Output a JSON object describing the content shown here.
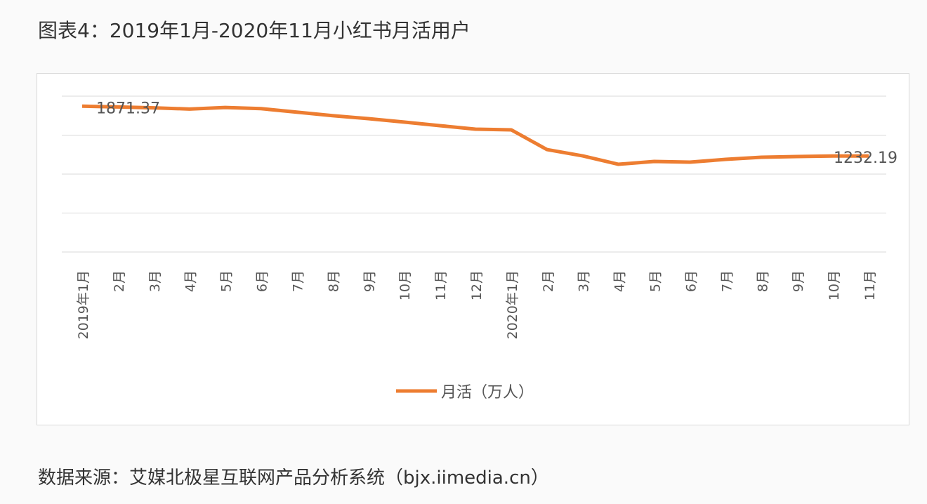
{
  "title": "图表4：2019年1月-2020年11月小红书月活用户",
  "source": "数据来源：艾媒北极星互联网产品分析系统（bjx.iimedia.cn）",
  "chart_data": {
    "type": "line",
    "title": "",
    "xlabel": "",
    "ylabel": "",
    "ylim": [
      0,
      2000
    ],
    "y_ticks_labeled": false,
    "grid": true,
    "legend_position": "bottom",
    "line_color": "#ED7D31",
    "categories": [
      "2019年1月",
      "2月",
      "3月",
      "4月",
      "5月",
      "6月",
      "7月",
      "8月",
      "9月",
      "10月",
      "11月",
      "12月",
      "2020年1月",
      "2月",
      "3月",
      "4月",
      "5月",
      "6月",
      "7月",
      "8月",
      "9月",
      "10月",
      "11月"
    ],
    "series": [
      {
        "name": "月活（万人）",
        "values": [
          1871.37,
          1862,
          1850,
          1835,
          1855,
          1840,
          1795,
          1750,
          1712,
          1668,
          1622,
          1577,
          1568,
          1315,
          1234,
          1126,
          1162,
          1153,
          1189,
          1216,
          1225,
          1232,
          1232.19
        ]
      }
    ],
    "data_labels": [
      {
        "index": 0,
        "text": "1871.37"
      },
      {
        "index": 22,
        "text": "1232.19"
      }
    ]
  }
}
